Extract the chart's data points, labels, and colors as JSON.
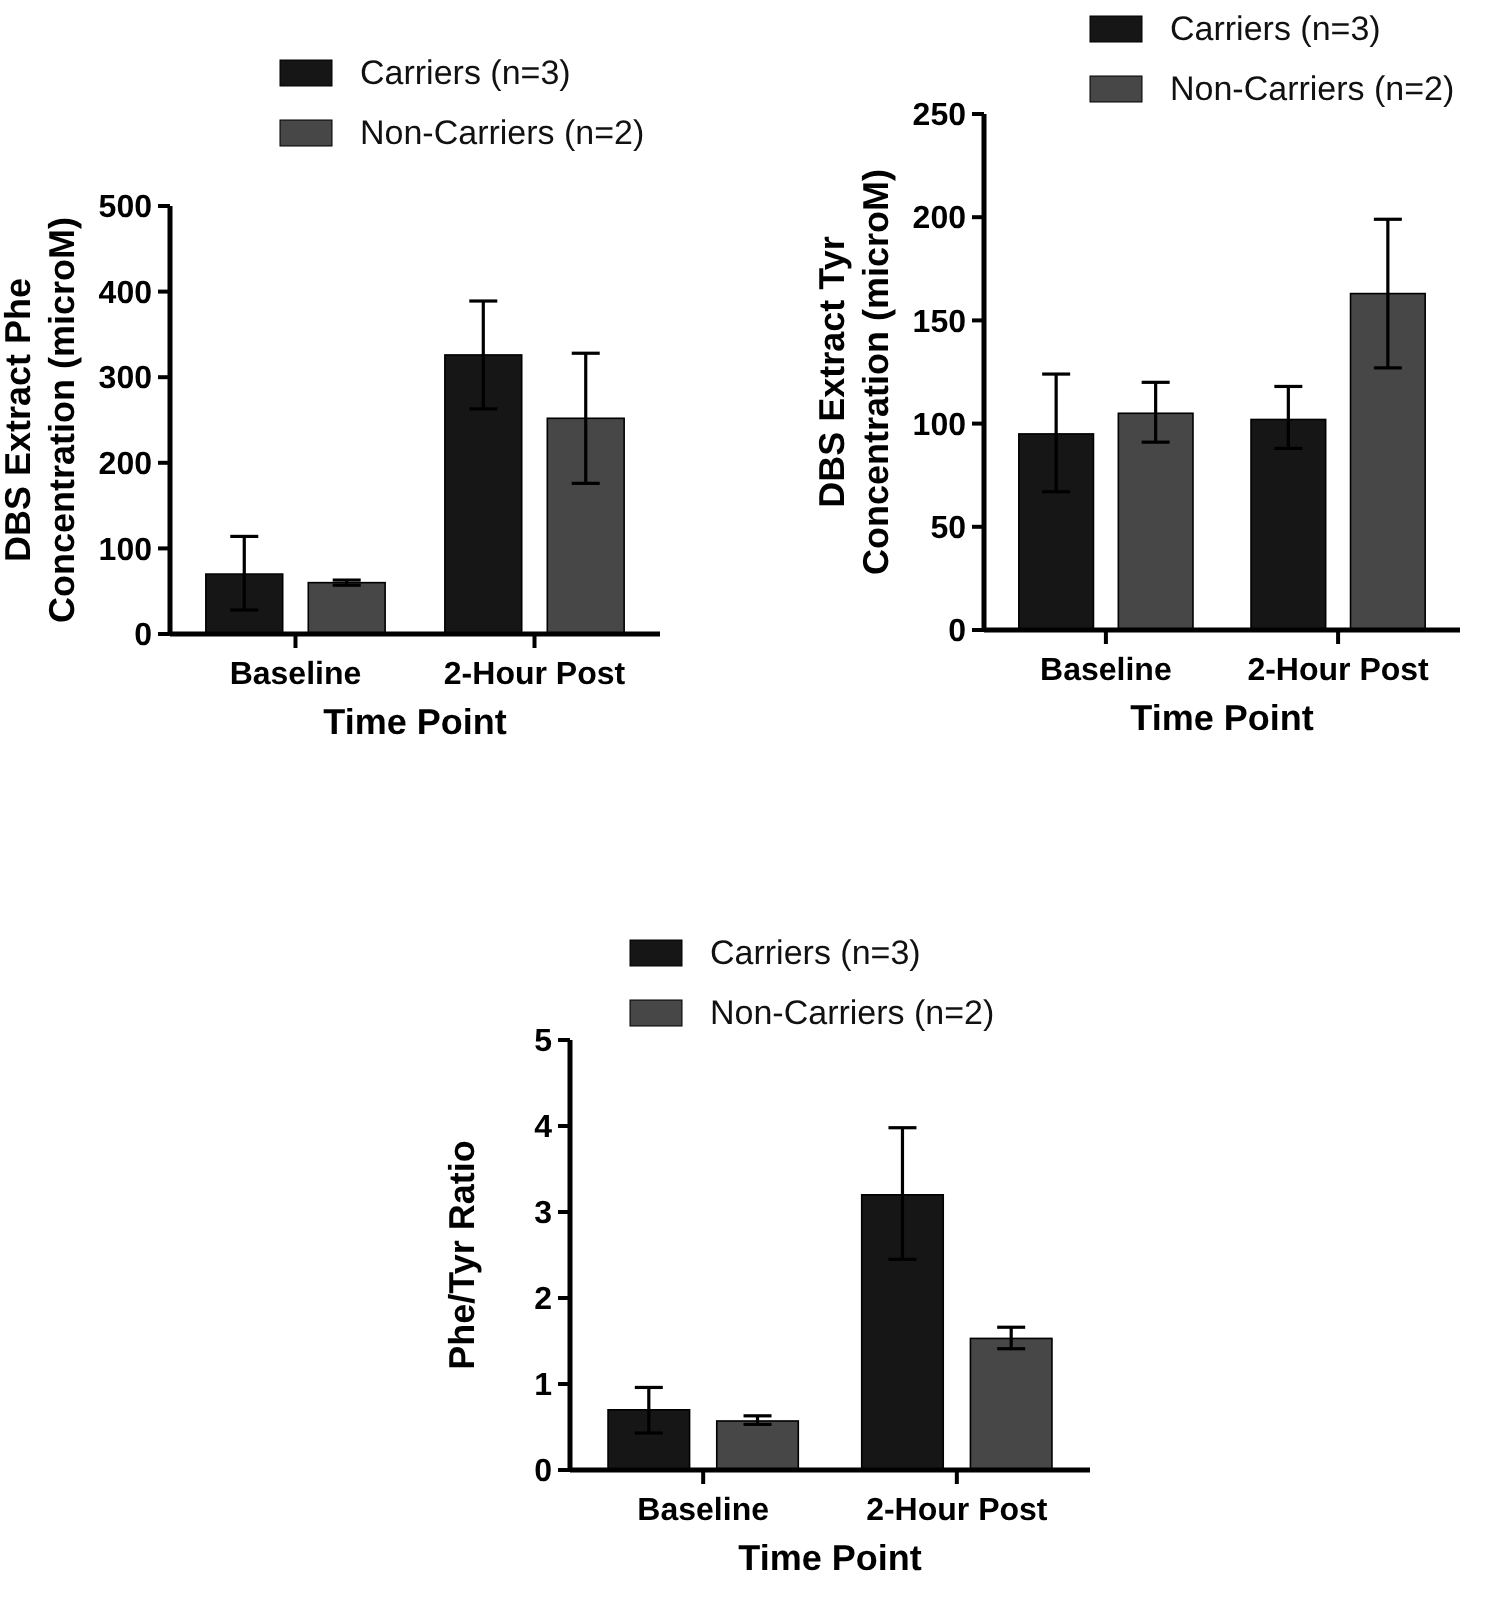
{
  "chart_data": [
    {
      "type": "bar",
      "xlabel": "Time Point",
      "ylabel": "DBS Extract Phe\nConcentration (microM)",
      "categories": [
        "Baseline",
        "2-Hour Post"
      ],
      "ylim": [
        0,
        500
      ],
      "yticks": [
        0,
        100,
        200,
        300,
        400,
        500
      ],
      "legend": "top",
      "series": [
        {
          "name": "Carriers (n=3)",
          "color": "#161616",
          "values": [
            70,
            326
          ],
          "errors": [
            [
              28,
              114
            ],
            [
              263,
              389
            ]
          ]
        },
        {
          "name": "Non-Carriers (n=2)",
          "color": "#474747",
          "values": [
            60,
            252
          ],
          "errors": [
            [
              57,
              63
            ],
            [
              176,
              328
            ]
          ]
        }
      ]
    },
    {
      "type": "bar",
      "xlabel": "Time Point",
      "ylabel": "DBS Extract Tyr\nConcentration (microM)",
      "categories": [
        "Baseline",
        "2-Hour Post"
      ],
      "ylim": [
        0,
        250
      ],
      "yticks": [
        0,
        50,
        100,
        150,
        200,
        250
      ],
      "legend": "top",
      "series": [
        {
          "name": "Carriers (n=3)",
          "color": "#161616",
          "values": [
            95,
            102
          ],
          "errors": [
            [
              67,
              124
            ],
            [
              88,
              118
            ]
          ]
        },
        {
          "name": "Non-Carriers (n=2)",
          "color": "#474747",
          "values": [
            105,
            163
          ],
          "errors": [
            [
              91,
              120
            ],
            [
              127,
              199
            ]
          ]
        }
      ]
    },
    {
      "type": "bar",
      "xlabel": "Time Point",
      "ylabel": "Phe/Tyr Ratio",
      "categories": [
        "Baseline",
        "2-Hour Post"
      ],
      "ylim": [
        0,
        5
      ],
      "yticks": [
        0,
        1,
        2,
        3,
        4,
        5
      ],
      "legend": "top",
      "series": [
        {
          "name": "Carriers (n=3)",
          "color": "#161616",
          "values": [
            0.7,
            3.2
          ],
          "errors": [
            [
              0.43,
              0.96
            ],
            [
              2.45,
              3.98
            ]
          ]
        },
        {
          "name": "Non-Carriers (n=2)",
          "color": "#474747",
          "values": [
            0.57,
            1.53
          ],
          "errors": [
            [
              0.53,
              0.63
            ],
            [
              1.41,
              1.66
            ]
          ]
        }
      ]
    }
  ]
}
